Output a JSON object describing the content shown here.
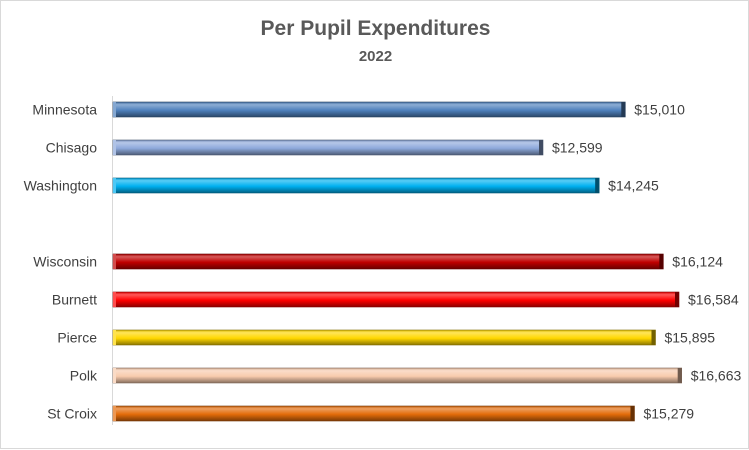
{
  "chart_data": {
    "type": "bar",
    "orientation": "horizontal",
    "title": "Per Pupil Expenditures",
    "subtitle": "2022",
    "xlabel": "",
    "ylabel": "",
    "grid": false,
    "legend": "none",
    "categories": [
      "Minnesota",
      "Chisago",
      "Washington",
      "",
      "Wisconsin",
      "Burnett",
      "Pierce",
      "Polk",
      "St Croix"
    ],
    "values": [
      15010,
      12599,
      14245,
      null,
      16124,
      16584,
      15895,
      16663,
      15279
    ],
    "value_labels": [
      "$15,010",
      "$12,599",
      "$14,245",
      "",
      "$16,124",
      "$16,584",
      "$15,895",
      "$16,663",
      "$15,279"
    ],
    "colors": [
      "#4f81bd",
      "#8ea9db",
      "#00b0f0",
      "",
      "#c00000",
      "#ff0000",
      "#ffd700",
      "#f8cbad",
      "#e46c0a"
    ],
    "xlim": [
      0,
      17000
    ]
  }
}
